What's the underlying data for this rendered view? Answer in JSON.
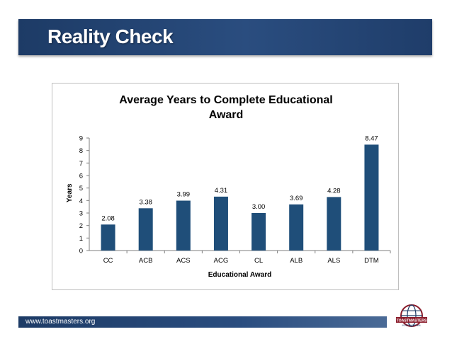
{
  "slide": {
    "title": "Reality Check",
    "footer_url": "www.toastmasters.org",
    "logo_text": "TOASTMASTERS",
    "logo_subtext": "INTERNATIONAL"
  },
  "colors": {
    "bar": "#1f4e79",
    "title_bar": "#1d3b66",
    "axis": "#7f7f7f"
  },
  "chart_data": {
    "type": "bar",
    "title": "Average Years to Complete Educational Award",
    "title_lines": [
      "Average Years to Complete Educational",
      "Award"
    ],
    "categories": [
      "CC",
      "ACB",
      "ACS",
      "ACG",
      "CL",
      "ALB",
      "ALS",
      "DTM"
    ],
    "values": [
      2.08,
      3.38,
      3.99,
      4.31,
      3.0,
      3.69,
      4.28,
      8.47
    ],
    "value_labels": [
      "2.08",
      "3.38",
      "3.99",
      "4.31",
      "3.00",
      "3.69",
      "4.28",
      "8.47"
    ],
    "xlabel": "Educational  Award",
    "ylabel": "Years",
    "ylim": [
      0,
      9
    ],
    "yticks": [
      "0",
      "1",
      "2",
      "3",
      "4",
      "5",
      "6",
      "7",
      "8",
      "9"
    ],
    "grid": false,
    "legend": "none"
  }
}
